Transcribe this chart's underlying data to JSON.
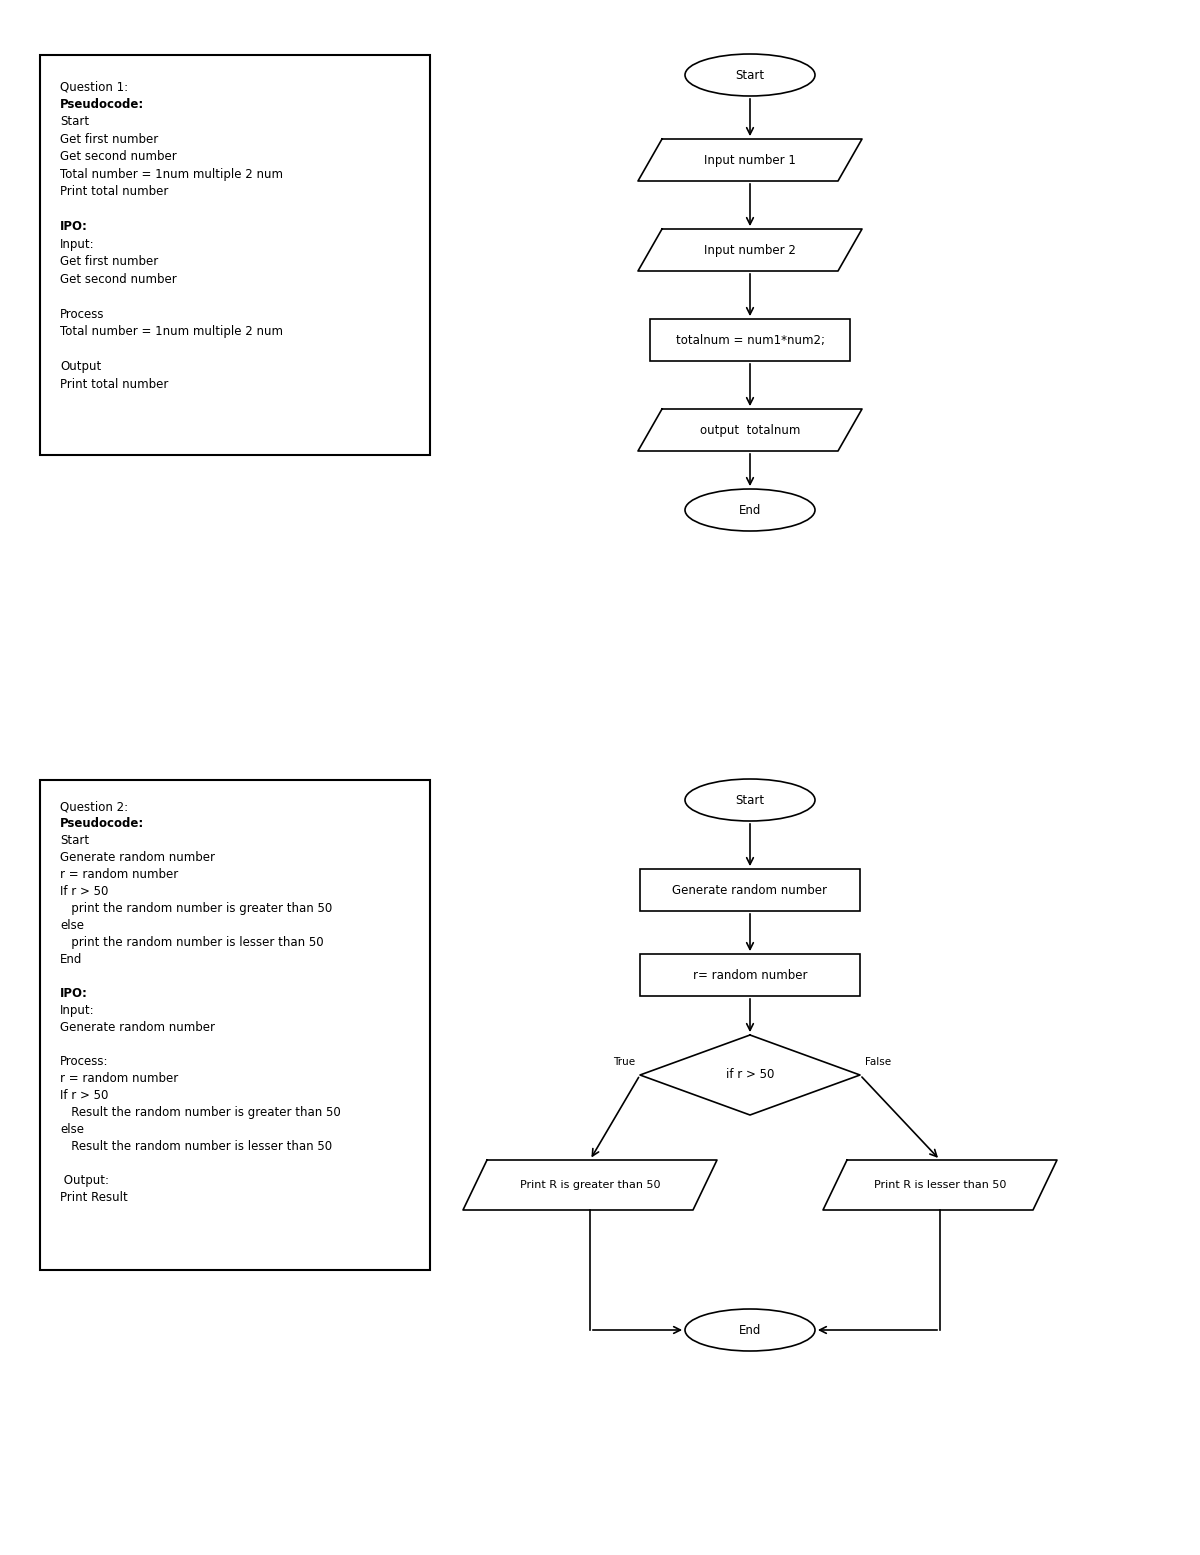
{
  "bg_color": "#ffffff",
  "q1_lines": [
    [
      "Question 1:",
      false
    ],
    [
      "Pseudocode:",
      true
    ],
    [
      "Start",
      false
    ],
    [
      "Get first number",
      false
    ],
    [
      "Get second number",
      false
    ],
    [
      "Total number = 1num multiple 2 num",
      false
    ],
    [
      "Print total number",
      false
    ],
    [
      "",
      false
    ],
    [
      "IPO:",
      true
    ],
    [
      "Input:",
      false
    ],
    [
      "Get first number",
      false
    ],
    [
      "Get second number",
      false
    ],
    [
      "",
      false
    ],
    [
      "Process",
      false
    ],
    [
      "Total number = 1num multiple 2 num",
      false
    ],
    [
      "",
      false
    ],
    [
      "Output",
      false
    ],
    [
      "Print total number",
      false
    ]
  ],
  "q2_lines": [
    [
      "Question 2:",
      false
    ],
    [
      "Pseudocode:",
      true
    ],
    [
      "Start",
      false
    ],
    [
      "Generate random number",
      false
    ],
    [
      "r = random number",
      false
    ],
    [
      "If r > 50",
      false
    ],
    [
      "   print the random number is greater than 50",
      false
    ],
    [
      "else",
      false
    ],
    [
      "   print the random number is lesser than 50",
      false
    ],
    [
      "End",
      false
    ],
    [
      "",
      false
    ],
    [
      "IPO:",
      true
    ],
    [
      "Input:",
      false
    ],
    [
      "Generate random number",
      false
    ],
    [
      "",
      false
    ],
    [
      "Process:",
      false
    ],
    [
      "r = random number",
      false
    ],
    [
      "If r > 50",
      false
    ],
    [
      "   Result the random number is greater than 50",
      false
    ],
    [
      "else",
      false
    ],
    [
      "   Result the random number is lesser than 50",
      false
    ],
    [
      "",
      false
    ],
    [
      " Output:",
      false
    ],
    [
      "Print Result",
      false
    ]
  ],
  "font_size_main": 8.5,
  "font_size_flow": 8.5
}
